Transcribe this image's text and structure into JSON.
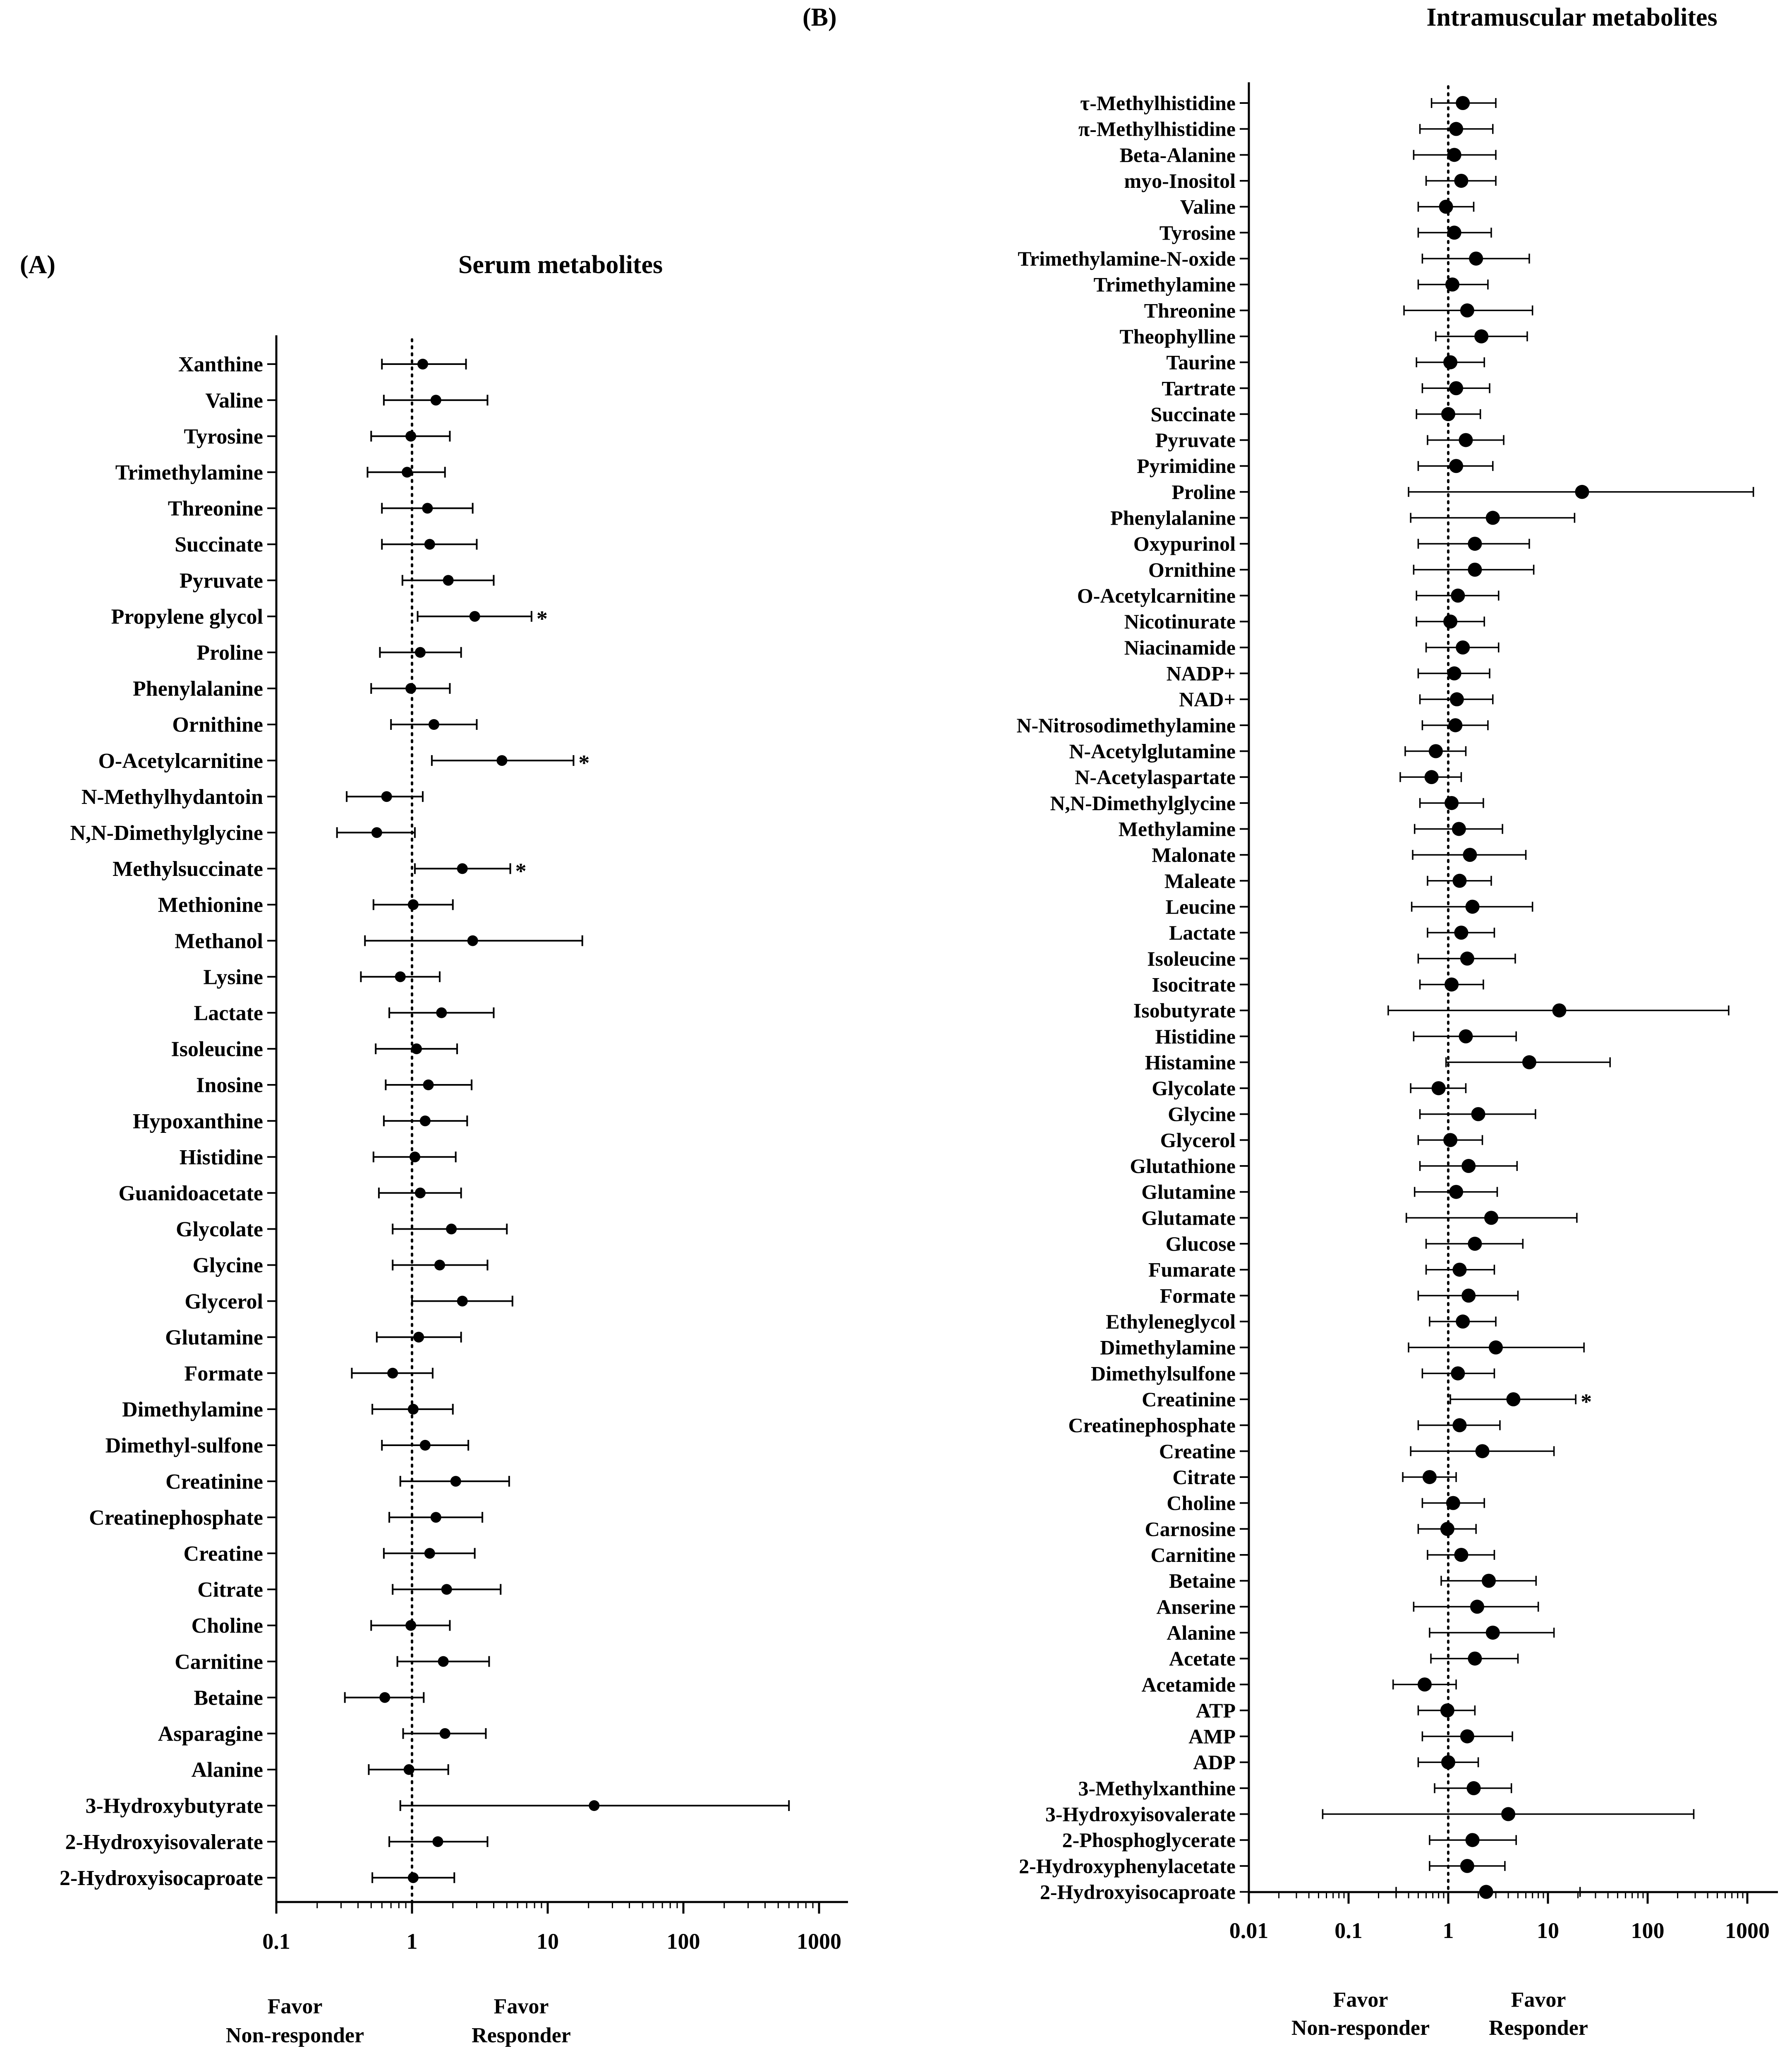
{
  "chart_data": [
    {
      "panel_label": "(A)",
      "title": "Serum metabolites",
      "type": "forest",
      "x_scale": "log",
      "xlim": [
        0.1,
        1000
      ],
      "x_ticks": [
        "0.1",
        "1",
        "10",
        "100",
        "1000"
      ],
      "reference_line": 1,
      "favor_left": [
        "Favor",
        "Non-responder"
      ],
      "favor_right": [
        "Favor",
        "Responder"
      ],
      "rows": [
        {
          "name": "Xanthine",
          "est": 1.2,
          "low": 0.6,
          "high": 2.5,
          "sig": ""
        },
        {
          "name": "Valine",
          "est": 1.5,
          "low": 0.62,
          "high": 3.6,
          "sig": ""
        },
        {
          "name": "Tyrosine",
          "est": 0.98,
          "low": 0.5,
          "high": 1.9,
          "sig": ""
        },
        {
          "name": "Trimethylamine",
          "est": 0.92,
          "low": 0.47,
          "high": 1.75,
          "sig": ""
        },
        {
          "name": "Threonine",
          "est": 1.3,
          "low": 0.6,
          "high": 2.8,
          "sig": ""
        },
        {
          "name": "Succinate",
          "est": 1.35,
          "low": 0.6,
          "high": 3.0,
          "sig": ""
        },
        {
          "name": "Pyruvate",
          "est": 1.85,
          "low": 0.85,
          "high": 4.0,
          "sig": ""
        },
        {
          "name": "Propylene glycol",
          "est": 2.9,
          "low": 1.1,
          "high": 7.6,
          "sig": "*"
        },
        {
          "name": "Proline",
          "est": 1.15,
          "low": 0.58,
          "high": 2.3,
          "sig": ""
        },
        {
          "name": "Phenylalanine",
          "est": 0.98,
          "low": 0.5,
          "high": 1.9,
          "sig": ""
        },
        {
          "name": "Ornithine",
          "est": 1.45,
          "low": 0.7,
          "high": 3.0,
          "sig": ""
        },
        {
          "name": "O-Acetylcarnitine",
          "est": 4.6,
          "low": 1.4,
          "high": 15.5,
          "sig": "*"
        },
        {
          "name": "N-Methylhydantoin",
          "est": 0.65,
          "low": 0.33,
          "high": 1.2,
          "sig": ""
        },
        {
          "name": "N,N-Dimethylglycine",
          "est": 0.55,
          "low": 0.28,
          "high": 1.05,
          "sig": ""
        },
        {
          "name": "Methylsuccinate",
          "est": 2.35,
          "low": 1.05,
          "high": 5.3,
          "sig": "*"
        },
        {
          "name": "Methionine",
          "est": 1.02,
          "low": 0.52,
          "high": 2.0,
          "sig": ""
        },
        {
          "name": "Methanol",
          "est": 2.8,
          "low": 0.45,
          "high": 18.0,
          "sig": ""
        },
        {
          "name": "Lysine",
          "est": 0.82,
          "low": 0.42,
          "high": 1.6,
          "sig": ""
        },
        {
          "name": "Lactate",
          "est": 1.65,
          "low": 0.68,
          "high": 4.0,
          "sig": ""
        },
        {
          "name": "Isoleucine",
          "est": 1.08,
          "low": 0.54,
          "high": 2.15,
          "sig": ""
        },
        {
          "name": "Inosine",
          "est": 1.32,
          "low": 0.64,
          "high": 2.75,
          "sig": ""
        },
        {
          "name": "Hypoxanthine",
          "est": 1.25,
          "low": 0.62,
          "high": 2.55,
          "sig": ""
        },
        {
          "name": "Histidine",
          "est": 1.05,
          "low": 0.52,
          "high": 2.1,
          "sig": ""
        },
        {
          "name": "Guanidoacetate",
          "est": 1.15,
          "low": 0.57,
          "high": 2.3,
          "sig": ""
        },
        {
          "name": "Glycolate",
          "est": 1.95,
          "low": 0.72,
          "high": 5.0,
          "sig": ""
        },
        {
          "name": "Glycine",
          "est": 1.6,
          "low": 0.72,
          "high": 3.6,
          "sig": ""
        },
        {
          "name": "Glycerol",
          "est": 2.35,
          "low": 1.0,
          "high": 5.5,
          "sig": ""
        },
        {
          "name": "Glutamine",
          "est": 1.12,
          "low": 0.55,
          "high": 2.3,
          "sig": ""
        },
        {
          "name": "Formate",
          "est": 0.72,
          "low": 0.36,
          "high": 1.42,
          "sig": ""
        },
        {
          "name": "Dimethylamine",
          "est": 1.02,
          "low": 0.51,
          "high": 2.0,
          "sig": ""
        },
        {
          "name": "Dimethyl-sulfone",
          "est": 1.25,
          "low": 0.6,
          "high": 2.6,
          "sig": ""
        },
        {
          "name": "Creatinine",
          "est": 2.1,
          "low": 0.82,
          "high": 5.2,
          "sig": ""
        },
        {
          "name": "Creatinephosphate",
          "est": 1.5,
          "low": 0.68,
          "high": 3.3,
          "sig": ""
        },
        {
          "name": "Creatine",
          "est": 1.35,
          "low": 0.62,
          "high": 2.9,
          "sig": ""
        },
        {
          "name": "Citrate",
          "est": 1.8,
          "low": 0.72,
          "high": 4.5,
          "sig": ""
        },
        {
          "name": "Choline",
          "est": 0.98,
          "low": 0.5,
          "high": 1.9,
          "sig": ""
        },
        {
          "name": "Carnitine",
          "est": 1.7,
          "low": 0.78,
          "high": 3.7,
          "sig": ""
        },
        {
          "name": "Betaine",
          "est": 0.63,
          "low": 0.32,
          "high": 1.22,
          "sig": ""
        },
        {
          "name": "Asparagine",
          "est": 1.75,
          "low": 0.86,
          "high": 3.5,
          "sig": ""
        },
        {
          "name": "Alanine",
          "est": 0.95,
          "low": 0.48,
          "high": 1.85,
          "sig": ""
        },
        {
          "name": "3-Hydroxybutyrate",
          "est": 22,
          "low": 0.82,
          "high": 600,
          "sig": ""
        },
        {
          "name": "2-Hydroxyisovalerate",
          "est": 1.55,
          "low": 0.68,
          "high": 3.6,
          "sig": ""
        },
        {
          "name": "2-Hydroxyisocaproate",
          "est": 1.02,
          "low": 0.51,
          "high": 2.05,
          "sig": ""
        }
      ]
    },
    {
      "panel_label": "(B)",
      "title": "Intramuscular metabolites",
      "type": "forest",
      "x_scale": "log",
      "xlim": [
        0.01,
        1000
      ],
      "x_ticks": [
        "0.01",
        "0.1",
        "1",
        "10",
        "100",
        "1000"
      ],
      "reference_line": 1,
      "favor_left": [
        "Favor",
        "Non-responder"
      ],
      "favor_right": [
        "Favor",
        "Responder"
      ],
      "rows": [
        {
          "name": "τ-Methylhistidine",
          "est": 1.4,
          "low": 0.68,
          "high": 3.0,
          "sig": ""
        },
        {
          "name": "π-Methylhistidine",
          "est": 1.2,
          "low": 0.52,
          "high": 2.8,
          "sig": ""
        },
        {
          "name": "Beta-Alanine",
          "est": 1.15,
          "low": 0.45,
          "high": 3.0,
          "sig": ""
        },
        {
          "name": "myo-Inositol",
          "est": 1.35,
          "low": 0.6,
          "high": 3.0,
          "sig": ""
        },
        {
          "name": "Valine",
          "est": 0.95,
          "low": 0.5,
          "high": 1.8,
          "sig": ""
        },
        {
          "name": "Tyrosine",
          "est": 1.15,
          "low": 0.5,
          "high": 2.7,
          "sig": ""
        },
        {
          "name": "Trimethylamine-N-oxide",
          "est": 1.9,
          "low": 0.55,
          "high": 6.5,
          "sig": ""
        },
        {
          "name": "Trimethylamine",
          "est": 1.1,
          "low": 0.5,
          "high": 2.5,
          "sig": ""
        },
        {
          "name": "Threonine",
          "est": 1.55,
          "low": 0.36,
          "high": 7.0,
          "sig": ""
        },
        {
          "name": "Theophylline",
          "est": 2.15,
          "low": 0.75,
          "high": 6.2,
          "sig": ""
        },
        {
          "name": "Taurine",
          "est": 1.05,
          "low": 0.48,
          "high": 2.3,
          "sig": ""
        },
        {
          "name": "Tartrate",
          "est": 1.2,
          "low": 0.55,
          "high": 2.6,
          "sig": ""
        },
        {
          "name": "Succinate",
          "est": 1.0,
          "low": 0.48,
          "high": 2.1,
          "sig": ""
        },
        {
          "name": "Pyruvate",
          "est": 1.5,
          "low": 0.62,
          "high": 3.6,
          "sig": ""
        },
        {
          "name": "Pyrimidine",
          "est": 1.2,
          "low": 0.5,
          "high": 2.8,
          "sig": ""
        },
        {
          "name": "Proline",
          "est": 22,
          "low": 0.4,
          "high": 1150,
          "sig": ""
        },
        {
          "name": "Phenylalanine",
          "est": 2.8,
          "low": 0.42,
          "high": 18.5,
          "sig": ""
        },
        {
          "name": "Oxypurinol",
          "est": 1.85,
          "low": 0.5,
          "high": 6.5,
          "sig": ""
        },
        {
          "name": "Ornithine",
          "est": 1.85,
          "low": 0.45,
          "high": 7.2,
          "sig": ""
        },
        {
          "name": "O-Acetylcarnitine",
          "est": 1.25,
          "low": 0.48,
          "high": 3.2,
          "sig": ""
        },
        {
          "name": "Nicotinurate",
          "est": 1.05,
          "low": 0.48,
          "high": 2.3,
          "sig": ""
        },
        {
          "name": "Niacinamide",
          "est": 1.4,
          "low": 0.6,
          "high": 3.2,
          "sig": ""
        },
        {
          "name": "NADP+",
          "est": 1.15,
          "low": 0.5,
          "high": 2.6,
          "sig": ""
        },
        {
          "name": "NAD+",
          "est": 1.22,
          "low": 0.52,
          "high": 2.8,
          "sig": ""
        },
        {
          "name": "N-Nitrosodimethylamine",
          "est": 1.18,
          "low": 0.55,
          "high": 2.5,
          "sig": ""
        },
        {
          "name": "N-Acetylglutamine",
          "est": 0.75,
          "low": 0.37,
          "high": 1.5,
          "sig": ""
        },
        {
          "name": "N-Acetylaspartate",
          "est": 0.68,
          "low": 0.33,
          "high": 1.35,
          "sig": ""
        },
        {
          "name": "N,N-Dimethylglycine",
          "est": 1.08,
          "low": 0.52,
          "high": 2.25,
          "sig": ""
        },
        {
          "name": "Methylamine",
          "est": 1.28,
          "low": 0.46,
          "high": 3.5,
          "sig": ""
        },
        {
          "name": "Malonate",
          "est": 1.65,
          "low": 0.44,
          "high": 6.0,
          "sig": ""
        },
        {
          "name": "Maleate",
          "est": 1.3,
          "low": 0.62,
          "high": 2.7,
          "sig": ""
        },
        {
          "name": "Leucine",
          "est": 1.75,
          "low": 0.43,
          "high": 7.0,
          "sig": ""
        },
        {
          "name": "Lactate",
          "est": 1.35,
          "low": 0.62,
          "high": 2.9,
          "sig": ""
        },
        {
          "name": "Isoleucine",
          "est": 1.55,
          "low": 0.5,
          "high": 4.7,
          "sig": ""
        },
        {
          "name": "Isocitrate",
          "est": 1.08,
          "low": 0.52,
          "high": 2.25,
          "sig": ""
        },
        {
          "name": "Isobutyrate",
          "est": 13,
          "low": 0.25,
          "high": 650,
          "sig": ""
        },
        {
          "name": "Histidine",
          "est": 1.5,
          "low": 0.45,
          "high": 4.8,
          "sig": ""
        },
        {
          "name": "Histamine",
          "est": 6.5,
          "low": 0.95,
          "high": 42,
          "sig": ""
        },
        {
          "name": "Glycolate",
          "est": 0.8,
          "low": 0.42,
          "high": 1.5,
          "sig": ""
        },
        {
          "name": "Glycine",
          "est": 2.0,
          "low": 0.52,
          "high": 7.5,
          "sig": ""
        },
        {
          "name": "Glycerol",
          "est": 1.05,
          "low": 0.5,
          "high": 2.2,
          "sig": ""
        },
        {
          "name": "Glutathione",
          "est": 1.6,
          "low": 0.52,
          "high": 4.9,
          "sig": ""
        },
        {
          "name": "Glutamine",
          "est": 1.2,
          "low": 0.46,
          "high": 3.1,
          "sig": ""
        },
        {
          "name": "Glutamate",
          "est": 2.7,
          "low": 0.38,
          "high": 19.5,
          "sig": ""
        },
        {
          "name": "Glucose",
          "est": 1.85,
          "low": 0.6,
          "high": 5.6,
          "sig": ""
        },
        {
          "name": "Fumarate",
          "est": 1.3,
          "low": 0.6,
          "high": 2.9,
          "sig": ""
        },
        {
          "name": "Formate",
          "est": 1.6,
          "low": 0.5,
          "high": 5.0,
          "sig": ""
        },
        {
          "name": "Ethyleneglycol",
          "est": 1.4,
          "low": 0.65,
          "high": 3.0,
          "sig": ""
        },
        {
          "name": "Dimethylamine",
          "est": 3.0,
          "low": 0.4,
          "high": 23,
          "sig": ""
        },
        {
          "name": "Dimethylsulfone",
          "est": 1.25,
          "low": 0.55,
          "high": 2.9,
          "sig": ""
        },
        {
          "name": "Creatinine",
          "est": 4.5,
          "low": 1.05,
          "high": 19,
          "sig": "*"
        },
        {
          "name": "Creatinephosphate",
          "est": 1.3,
          "low": 0.5,
          "high": 3.3,
          "sig": ""
        },
        {
          "name": "Creatine",
          "est": 2.2,
          "low": 0.42,
          "high": 11.5,
          "sig": ""
        },
        {
          "name": "Citrate",
          "est": 0.65,
          "low": 0.35,
          "high": 1.2,
          "sig": ""
        },
        {
          "name": "Choline",
          "est": 1.12,
          "low": 0.55,
          "high": 2.3,
          "sig": ""
        },
        {
          "name": "Carnosine",
          "est": 0.98,
          "low": 0.5,
          "high": 1.9,
          "sig": ""
        },
        {
          "name": "Carnitine",
          "est": 1.35,
          "low": 0.62,
          "high": 2.9,
          "sig": ""
        },
        {
          "name": "Betaine",
          "est": 2.55,
          "low": 0.85,
          "high": 7.6,
          "sig": ""
        },
        {
          "name": "Anserine",
          "est": 1.95,
          "low": 0.45,
          "high": 8.0,
          "sig": ""
        },
        {
          "name": "Alanine",
          "est": 2.8,
          "low": 0.65,
          "high": 11.5,
          "sig": ""
        },
        {
          "name": "Acetate",
          "est": 1.85,
          "low": 0.67,
          "high": 5.0,
          "sig": ""
        },
        {
          "name": "Acetamide",
          "est": 0.58,
          "low": 0.28,
          "high": 1.2,
          "sig": ""
        },
        {
          "name": "ATP",
          "est": 0.98,
          "low": 0.5,
          "high": 1.85,
          "sig": ""
        },
        {
          "name": "AMP",
          "est": 1.55,
          "low": 0.55,
          "high": 4.4,
          "sig": ""
        },
        {
          "name": "ADP",
          "est": 1.0,
          "low": 0.5,
          "high": 2.0,
          "sig": ""
        },
        {
          "name": "3-Methylxanthine",
          "est": 1.8,
          "low": 0.73,
          "high": 4.3,
          "sig": ""
        },
        {
          "name": "3-Hydroxyisovalerate",
          "est": 4.0,
          "low": 0.055,
          "high": 290,
          "sig": ""
        },
        {
          "name": "2-Phosphoglycerate",
          "est": 1.75,
          "low": 0.65,
          "high": 4.8,
          "sig": ""
        },
        {
          "name": "2-Hydroxyphenylacetate",
          "est": 1.55,
          "low": 0.65,
          "high": 3.7,
          "sig": ""
        },
        {
          "name": "2-Hydroxyisocaproate",
          "est": 2.4,
          "low": 0.3,
          "high": 21,
          "sig": ""
        }
      ]
    }
  ]
}
